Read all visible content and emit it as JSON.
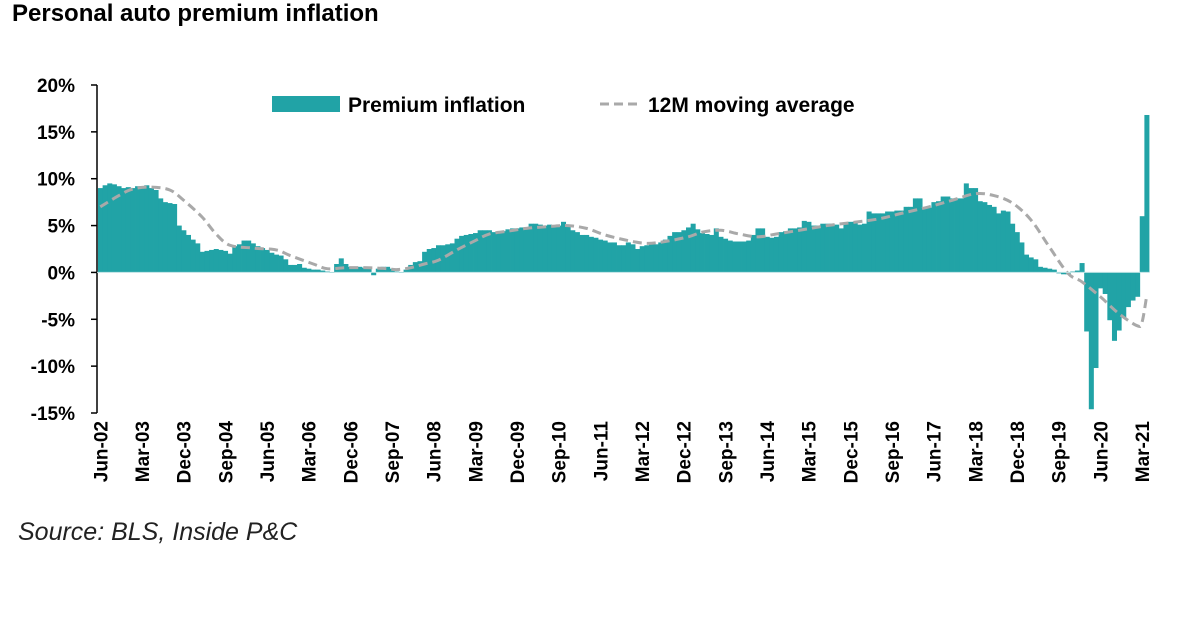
{
  "chart_data": {
    "type": "bar",
    "title": "Personal auto premium inflation",
    "source": "Source: BLS, Inside P&C",
    "ylim": [
      -15,
      20
    ],
    "y_ticks": [
      "20%",
      "15%",
      "10%",
      "5%",
      "0%",
      "-5%",
      "-10%",
      "-15%"
    ],
    "y_tick_values": [
      20,
      15,
      10,
      5,
      0,
      -5,
      -10,
      -15
    ],
    "x_tick_labels": [
      "Jun-02",
      "Mar-03",
      "Dec-03",
      "Sep-04",
      "Jun-05",
      "Mar-06",
      "Dec-06",
      "Sep-07",
      "Jun-08",
      "Mar-09",
      "Dec-09",
      "Sep-10",
      "Jun-11",
      "Mar-12",
      "Dec-12",
      "Sep-13",
      "Jun-14",
      "Mar-15",
      "Dec-15",
      "Sep-16",
      "Jun-17",
      "Mar-18",
      "Dec-18",
      "Sep-19",
      "Jun-20",
      "Mar-21"
    ],
    "legend_position": "top",
    "grid": false,
    "colors": {
      "bars": "#21a3a6",
      "moving_average": "#a9a9a9"
    },
    "series": [
      {
        "name": "Premium inflation",
        "type": "bar",
        "first_month": "Jun-02",
        "frequency": "monthly",
        "values": [
          9.0,
          9.3,
          9.5,
          9.4,
          9.2,
          9.0,
          9.1,
          9.0,
          9.2,
          9.2,
          9.3,
          9.0,
          8.8,
          7.9,
          7.5,
          7.4,
          7.3,
          5.0,
          4.5,
          4.0,
          3.5,
          3.1,
          2.2,
          2.3,
          2.4,
          2.5,
          2.4,
          2.3,
          2.0,
          2.8,
          3.0,
          3.4,
          3.4,
          3.1,
          2.8,
          2.6,
          2.4,
          2.1,
          1.9,
          1.8,
          1.4,
          0.8,
          0.8,
          0.9,
          0.5,
          0.4,
          0.3,
          0.3,
          0.2,
          0.1,
          0.0,
          0.9,
          1.5,
          0.9,
          0.6,
          0.6,
          0.6,
          0.5,
          0.6,
          -0.3,
          0.4,
          0.6,
          0.6,
          0.4,
          0.1,
          0.0,
          0.3,
          0.8,
          1.1,
          1.2,
          2.2,
          2.5,
          2.6,
          2.9,
          2.9,
          3.0,
          3.1,
          3.6,
          3.9,
          4.0,
          4.1,
          4.2,
          4.5,
          4.5,
          4.5,
          4.3,
          4.3,
          4.4,
          4.6,
          4.7,
          4.7,
          4.8,
          4.8,
          5.2,
          5.2,
          5.1,
          5.0,
          5.1,
          4.9,
          5.0,
          5.4,
          4.9,
          4.5,
          4.3,
          4.0,
          4.0,
          3.8,
          3.7,
          3.5,
          3.4,
          3.2,
          3.2,
          2.9,
          2.9,
          3.2,
          3.0,
          2.5,
          2.8,
          2.9,
          3.0,
          3.0,
          3.2,
          3.5,
          3.9,
          4.3,
          4.3,
          4.5,
          4.8,
          5.2,
          4.6,
          4.2,
          4.1,
          4.0,
          4.7,
          3.8,
          3.6,
          3.4,
          3.3,
          3.3,
          3.3,
          3.4,
          4.0,
          4.7,
          4.7,
          3.8,
          3.7,
          3.8,
          4.3,
          4.4,
          4.7,
          4.7,
          4.8,
          5.5,
          5.4,
          5.0,
          5.0,
          5.2,
          5.2,
          5.2,
          5.1,
          4.7,
          5.3,
          5.4,
          5.4,
          5.1,
          5.2,
          6.5,
          6.3,
          6.3,
          6.3,
          6.5,
          6.5,
          6.6,
          6.6,
          7.0,
          7.0,
          7.9,
          7.9,
          6.9,
          6.9,
          7.5,
          7.6,
          8.1,
          8.1,
          7.9,
          7.9,
          7.9,
          9.5,
          9.0,
          9.0,
          7.6,
          7.5,
          7.2,
          7.0,
          6.3,
          6.6,
          6.5,
          5.2,
          4.3,
          3.2,
          1.9,
          1.6,
          1.4,
          0.6,
          0.5,
          0.4,
          0.3,
          -0.1,
          -0.2,
          -0.2,
          0.1,
          0.2,
          1.0,
          -6.3,
          -14.6,
          -10.2,
          -1.7,
          -2.3,
          -5.1,
          -7.3,
          -6.2,
          -4.8,
          -3.7,
          -3.0,
          -2.6,
          6.0,
          16.8
        ]
      },
      {
        "name": "12M moving average",
        "type": "line",
        "style": "dashed",
        "points": [
          [
            "Jun-02",
            7.0
          ],
          [
            "Oct-02",
            8.2
          ],
          [
            "Jan-03",
            8.9
          ],
          [
            "May-03",
            9.1
          ],
          [
            "Sep-03",
            8.8
          ],
          [
            "Dec-03",
            7.7
          ],
          [
            "Apr-04",
            5.9
          ],
          [
            "Jul-04",
            4.1
          ],
          [
            "Oct-04",
            2.9
          ],
          [
            "Mar-05",
            2.6
          ],
          [
            "Aug-05",
            2.4
          ],
          [
            "Nov-05",
            1.8
          ],
          [
            "Apr-06",
            0.9
          ],
          [
            "Jul-06",
            0.4
          ],
          [
            "Nov-06",
            0.5
          ],
          [
            "Apr-07",
            0.5
          ],
          [
            "Aug-07",
            0.4
          ],
          [
            "Oct-07",
            0.3
          ],
          [
            "Jan-08",
            0.5
          ],
          [
            "Apr-08",
            0.9
          ],
          [
            "Jul-08",
            1.3
          ],
          [
            "Nov-08",
            2.4
          ],
          [
            "Mar-09",
            3.4
          ],
          [
            "Jun-09",
            4.1
          ],
          [
            "Oct-09",
            4.4
          ],
          [
            "Feb-10",
            4.7
          ],
          [
            "Jul-10",
            4.9
          ],
          [
            "Nov-10",
            5.0
          ],
          [
            "Mar-11",
            4.7
          ],
          [
            "Jul-11",
            4.0
          ],
          [
            "Dec-11",
            3.4
          ],
          [
            "Apr-12",
            3.1
          ],
          [
            "Aug-12",
            3.3
          ],
          [
            "Jan-13",
            3.8
          ],
          [
            "Apr-13",
            4.3
          ],
          [
            "Aug-13",
            4.5
          ],
          [
            "Dec-13",
            4.1
          ],
          [
            "Apr-14",
            3.8
          ],
          [
            "Aug-14",
            4.1
          ],
          [
            "Jan-15",
            4.5
          ],
          [
            "Jul-15",
            5.0
          ],
          [
            "Dec-15",
            5.3
          ],
          [
            "Jun-16",
            5.7
          ],
          [
            "Nov-16",
            6.3
          ],
          [
            "May-17",
            7.0
          ],
          [
            "Oct-17",
            7.7
          ],
          [
            "Mar-18",
            8.4
          ],
          [
            "Jul-18",
            8.2
          ],
          [
            "Nov-18",
            7.4
          ],
          [
            "Mar-19",
            5.6
          ],
          [
            "Jul-19",
            2.7
          ],
          [
            "Nov-19",
            -0.1
          ],
          [
            "Feb-20",
            -1.0
          ],
          [
            "Jun-20",
            -2.6
          ],
          [
            "Oct-20",
            -4.4
          ],
          [
            "Feb-21",
            -5.7
          ],
          [
            "Mar-21",
            -5.3
          ],
          [
            "Apr-21",
            -2.5
          ]
        ]
      }
    ]
  }
}
